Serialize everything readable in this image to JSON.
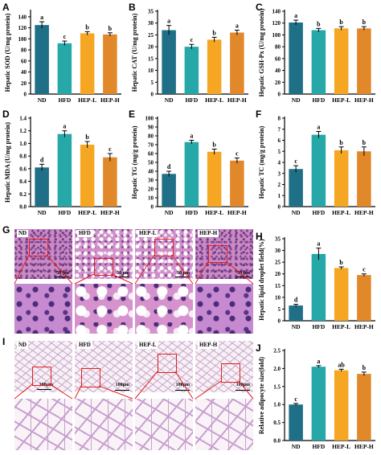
{
  "colors": {
    "ND": "#1f6f86",
    "HFD": "#26a8a8",
    "HEP-L": "#f5a623",
    "HEP-H": "#e0882a",
    "zoom": "#e02020"
  },
  "groups": [
    "ND",
    "HFD",
    "HEP-L",
    "HEP-H"
  ],
  "panels": {
    "A": "A",
    "B": "B",
    "C": "C",
    "D": "D",
    "E": "E",
    "F": "F",
    "G": "G",
    "H": "H",
    "I": "I",
    "J": "J"
  },
  "chart_data": [
    {
      "panel": "A",
      "type": "bar",
      "ylabel": "Hepatic SOD (U/mg protein)",
      "categories": [
        "ND",
        "HFD",
        "HEP-L",
        "HEP-H"
      ],
      "values": [
        125,
        92,
        110,
        108
      ],
      "errors": [
        6,
        4,
        3,
        3
      ],
      "letters": [
        "a",
        "c",
        "b",
        "b"
      ],
      "ylim": [
        0,
        150
      ],
      "yticks": [
        0,
        20,
        40,
        60,
        80,
        100,
        120,
        140
      ]
    },
    {
      "panel": "B",
      "type": "bar",
      "ylabel": "Hepatic CAT (U/mg protein)",
      "categories": [
        "ND",
        "HFD",
        "HEP-L",
        "HEP-H"
      ],
      "values": [
        27,
        20,
        23,
        26
      ],
      "errors": [
        2,
        1,
        1,
        1
      ],
      "letters": [
        "a",
        "c",
        "b",
        "a"
      ],
      "ylim": [
        0,
        35
      ],
      "yticks": [
        0,
        5,
        10,
        15,
        20,
        25,
        30,
        35
      ]
    },
    {
      "panel": "C",
      "type": "bar",
      "ylabel": "Hepatic GSH-Px (U/mg protein)",
      "categories": [
        "ND",
        "HFD",
        "HEP-L",
        "HEP-H"
      ],
      "values": [
        121,
        108,
        111,
        111
      ],
      "errors": [
        4,
        3,
        3,
        3
      ],
      "letters": [
        "a",
        "b",
        "b",
        "b"
      ],
      "ylim": [
        0,
        140
      ],
      "yticks": [
        0,
        20,
        40,
        60,
        80,
        100,
        120,
        140
      ]
    },
    {
      "panel": "D",
      "type": "bar",
      "ylabel": "Hepatic MDA (U/mg protein)",
      "categories": [
        "ND",
        "HFD",
        "HEP-L",
        "HEP-H"
      ],
      "values": [
        0.62,
        1.15,
        0.98,
        0.78
      ],
      "errors": [
        0.05,
        0.05,
        0.05,
        0.06
      ],
      "letters": [
        "d",
        "a",
        "b",
        "c"
      ],
      "ylim": [
        0,
        1.4
      ],
      "yticks": [
        0.0,
        0.2,
        0.4,
        0.6,
        0.8,
        1.0,
        1.2,
        1.4
      ]
    },
    {
      "panel": "E",
      "type": "bar",
      "ylabel": "Hepatic TG (mg/g protein)",
      "categories": [
        "ND",
        "HFD",
        "HEP-L",
        "HEP-H"
      ],
      "values": [
        37,
        73,
        62,
        52
      ],
      "errors": [
        3,
        2,
        3,
        3
      ],
      "letters": [
        "d",
        "a",
        "b",
        "c"
      ],
      "ylim": [
        0,
        100
      ],
      "yticks": [
        0,
        10,
        20,
        30,
        40,
        50,
        60,
        70,
        80,
        90,
        100
      ]
    },
    {
      "panel": "F",
      "type": "bar",
      "ylabel": "Hepatic TC (mg/g protein)",
      "categories": [
        "ND",
        "HFD",
        "HEP-L",
        "HEP-H"
      ],
      "values": [
        3.4,
        6.5,
        5.1,
        5.0
      ],
      "errors": [
        0.3,
        0.3,
        0.3,
        0.4
      ],
      "letters": [
        "c",
        "a",
        "b",
        "b"
      ],
      "ylim": [
        0,
        8
      ],
      "yticks": [
        0,
        1,
        2,
        3,
        4,
        5,
        6,
        7,
        8
      ]
    },
    {
      "panel": "H",
      "type": "bar",
      "ylabel": "Hepatic lipid droplet field(%)",
      "categories": [
        "ND",
        "HFD",
        "HEP-L",
        "HEP-H"
      ],
      "values": [
        6.5,
        28.5,
        22.5,
        19.5
      ],
      "errors": [
        0.5,
        2.5,
        0.5,
        0.5
      ],
      "letters": [
        "d",
        "a",
        "b",
        "c"
      ],
      "ylim": [
        0,
        35
      ],
      "yticks": [
        0,
        5,
        10,
        15,
        20,
        25,
        30,
        35
      ]
    },
    {
      "panel": "J",
      "type": "bar",
      "ylabel": "Relative adipocyte size(fold)",
      "categories": [
        "ND",
        "HFD",
        "HEP-L",
        "HEP-H"
      ],
      "values": [
        1.0,
        2.05,
        1.95,
        1.85
      ],
      "errors": [
        0.03,
        0.03,
        0.03,
        0.05
      ],
      "letters": [
        "c",
        "a",
        "ab",
        "b"
      ],
      "ylim": [
        0,
        2.5
      ],
      "yticks": [
        0.0,
        0.5,
        1.0,
        1.5,
        2.0,
        2.5
      ]
    }
  ],
  "micrographs": {
    "G": {
      "labels": [
        "ND",
        "HFD",
        "HEP-L",
        "HEP-H"
      ],
      "scale": "50 μm"
    },
    "I": {
      "labels": [
        "ND",
        "HFD",
        "HEP-L",
        "HEP-H"
      ],
      "scale": "100μm"
    }
  }
}
